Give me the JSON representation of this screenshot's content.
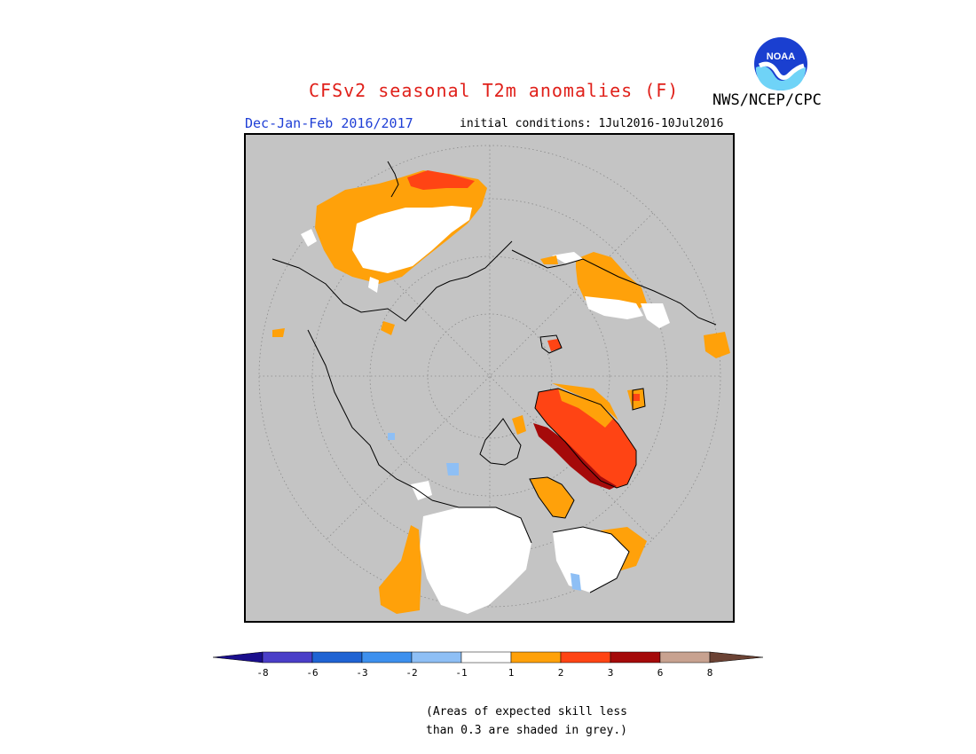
{
  "header": {
    "title": "CFSv2 seasonal T2m anomalies (F)",
    "period": "Dec-Jan-Feb 2016/2017",
    "initial_conditions": "initial conditions: 1Jul2016-10Jul2016",
    "agency": "NWS/NCEP/CPC",
    "logo_text": "NOAA"
  },
  "colors": {
    "skill_mask": "#c4c4c4",
    "title": "#e0201a",
    "period": "#1f3fd6"
  },
  "legend": {
    "ticks": [
      "-8",
      "-6",
      "-3",
      "-2",
      "-1",
      "1",
      "2",
      "3",
      "6",
      "8"
    ],
    "bins": [
      {
        "range": "< -8",
        "color": "#1a0e8c"
      },
      {
        "range": "-8 to -6",
        "color": "#4a3ec8"
      },
      {
        "range": "-6 to -3",
        "color": "#1f63d3"
      },
      {
        "range": "-3 to -2",
        "color": "#3d90ee"
      },
      {
        "range": "-2 to -1",
        "color": "#8ebff5"
      },
      {
        "range": "-1 to 1",
        "color": "#ffffff"
      },
      {
        "range": "1 to 2",
        "color": "#ffa10a"
      },
      {
        "range": "2 to 3",
        "color": "#ff4414"
      },
      {
        "range": "3 to 6",
        "color": "#a50a0a"
      },
      {
        "range": "6 to 8",
        "color": "#c8a290"
      },
      {
        "range": "> 8",
        "color": "#6b4234"
      }
    ]
  },
  "note": {
    "line1": "(Areas of expected skill less",
    "line2": "than 0.3 are shaded in grey.)"
  }
}
